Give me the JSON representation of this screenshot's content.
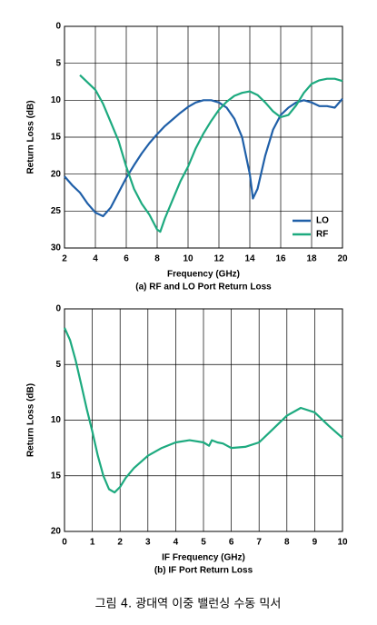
{
  "chart_data": [
    {
      "type": "line",
      "x_label": "Frequency (GHz)",
      "subtitle": "(a) RF and LO Port Return Loss",
      "y_label": "Return Loss (dB)",
      "xlim": [
        2,
        20
      ],
      "xticks": [
        2,
        4,
        6,
        8,
        10,
        12,
        14,
        16,
        18,
        20
      ],
      "ylim": [
        0,
        30
      ],
      "yticks": [
        0,
        5,
        10,
        15,
        20,
        25,
        30
      ],
      "y_inverted": true,
      "grid": true,
      "legend": "lower right",
      "series": [
        {
          "name": "LO",
          "color": "#1f5fa8",
          "x": [
            2,
            2.5,
            3,
            3.5,
            4,
            4.5,
            5,
            5.5,
            6,
            6.5,
            7,
            7.5,
            8,
            8.5,
            9,
            9.5,
            10,
            10.5,
            11,
            11.5,
            12,
            12.5,
            13,
            13.5,
            14,
            14.2,
            14.5,
            15,
            15.5,
            16,
            16.5,
            17,
            17.5,
            18,
            18.5,
            19,
            19.5,
            20
          ],
          "values": [
            20.3,
            21.5,
            22.5,
            24,
            25.2,
            25.7,
            24.5,
            22.5,
            20.5,
            18.8,
            17.2,
            15.8,
            14.6,
            13.5,
            12.6,
            11.7,
            10.9,
            10.3,
            10,
            10,
            10.3,
            11,
            12.5,
            15,
            20,
            23.3,
            22,
            17.5,
            14,
            12,
            11,
            10.3,
            10,
            10.3,
            10.8,
            10.8,
            11,
            9.8
          ]
        },
        {
          "name": "RF",
          "color": "#1daa7f",
          "x": [
            3,
            3.5,
            4,
            4.5,
            5,
            5.5,
            6,
            6.5,
            7,
            7.5,
            8,
            8.2,
            8.5,
            9,
            9.5,
            10,
            10.5,
            11,
            11.5,
            12,
            12.5,
            13,
            13.5,
            14,
            14.5,
            15,
            15.5,
            16,
            16.5,
            17,
            17.5,
            18,
            18.5,
            19,
            19.5,
            20
          ],
          "values": [
            6.6,
            7.6,
            8.6,
            10.5,
            13,
            15.5,
            19,
            22,
            24,
            25.5,
            27.5,
            27.8,
            26,
            23.5,
            21,
            19,
            16.5,
            14.5,
            12.8,
            11.3,
            10.2,
            9.4,
            9,
            8.8,
            9.3,
            10.3,
            11.5,
            12.3,
            12,
            10.7,
            9,
            7.8,
            7.3,
            7.1,
            7.1,
            7.4
          ]
        }
      ]
    },
    {
      "type": "line",
      "x_label": "IF Frequency (GHz)",
      "subtitle": "(b) IF Port Return Loss",
      "y_label": "Return Loss (dB)",
      "xlim": [
        0,
        10
      ],
      "xticks": [
        0,
        1,
        2,
        3,
        4,
        5,
        6,
        7,
        8,
        9,
        10
      ],
      "ylim": [
        0,
        20
      ],
      "yticks": [
        0,
        5,
        10,
        15,
        20
      ],
      "y_inverted": true,
      "grid": true,
      "series": [
        {
          "color": "#1daa7f",
          "x": [
            0,
            0.2,
            0.4,
            0.6,
            0.8,
            1,
            1.2,
            1.4,
            1.6,
            1.8,
            2,
            2.2,
            2.5,
            3,
            3.5,
            4,
            4.5,
            5,
            5.2,
            5.3,
            5.5,
            5.7,
            6,
            6.5,
            7,
            7.5,
            8,
            8.5,
            9,
            9.5,
            10
          ],
          "values": [
            1.7,
            2.8,
            4.6,
            6.8,
            9,
            11,
            13.2,
            15,
            16.2,
            16.5,
            16,
            15.2,
            14.3,
            13.2,
            12.5,
            12,
            11.8,
            12,
            12.3,
            11.8,
            12,
            12.1,
            12.5,
            12.4,
            12,
            10.8,
            9.6,
            8.9,
            9.3,
            10.5,
            11.6
          ]
        }
      ]
    }
  ],
  "caption": "그림 4. 광대역 이중 밸런싱 수동 믹서"
}
